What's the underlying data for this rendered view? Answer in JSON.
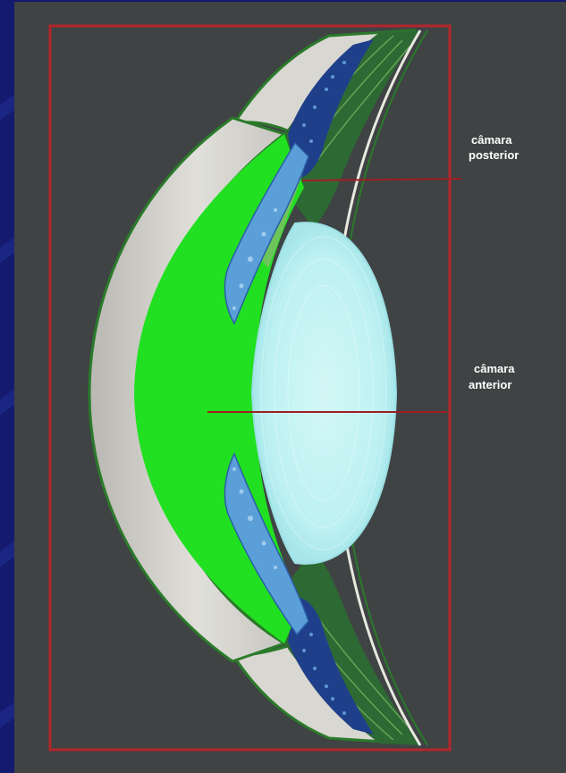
{
  "labels": {
    "posterior_chamber": [
      "câmara",
      "posterior"
    ],
    "anterior_chamber": [
      "câmara",
      "anterior"
    ]
  },
  "colors": {
    "slide_background": "#141a6e",
    "figure_background": "#3f4344",
    "frame": "#b3262b",
    "pointer_line": "#a01e22",
    "label_text": "#ffffff",
    "cornea": "#d4d2cc",
    "anterior_chamber": "#22e022",
    "lens": "#bff2f3",
    "iris": "#5b9fd8",
    "ciliary_tissue": "#2e6f35"
  }
}
